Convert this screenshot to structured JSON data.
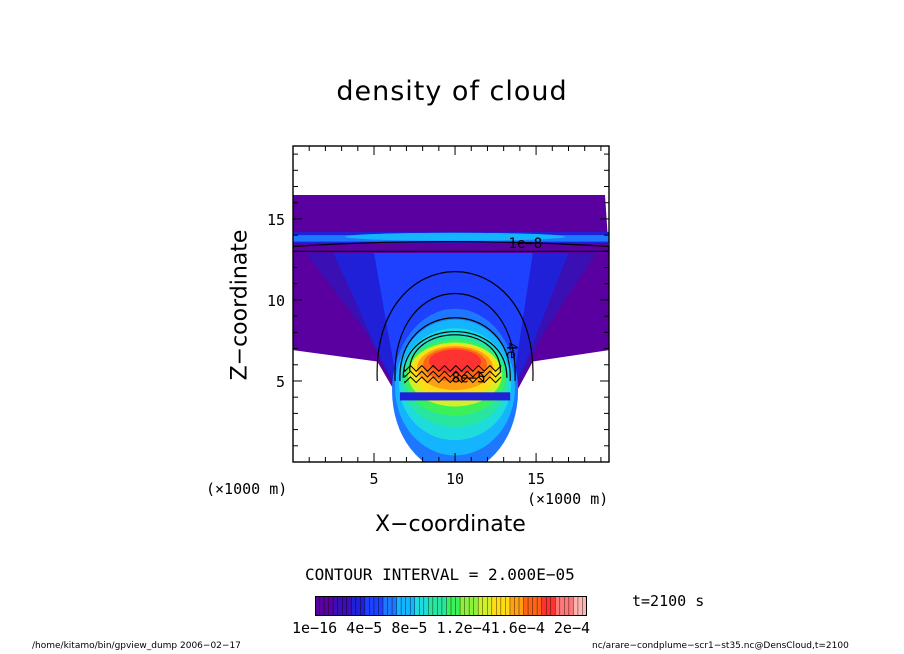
{
  "chart_data": {
    "type": "heatmap",
    "title": "density of cloud",
    "xlabel": "X−coordinate",
    "ylabel": "Z−coordinate",
    "x_unit": "(×1000 m)",
    "x_ticks": [
      5,
      10,
      15
    ],
    "y_ticks": [
      5,
      10,
      15
    ],
    "xlim": [
      0,
      19.5
    ],
    "ylim": [
      0,
      19.5
    ],
    "contour_interval": "CONTOUR INTERVAL = 2.000E−05",
    "time_label": "t=2100 s",
    "colorbar_ticks": "1e−16  4e−5  8e−5 1.2e−41.6e−4 2e−4",
    "contour_labels": [
      "1e−8",
      "4e",
      "8e−5"
    ],
    "fields": {
      "upper_layer": {
        "z_range": [
          12.8,
          16.6
        ],
        "value": "1e-8"
      },
      "cloud_core": {
        "x_center": 10,
        "z_peak": 7.0,
        "max_value": "2e-4"
      }
    },
    "colors": [
      "#5a00a0",
      "#3a0fb4",
      "#2020d8",
      "#1e40ff",
      "#1e78ff",
      "#14b4ff",
      "#1edcdc",
      "#28e6a0",
      "#3cf05a",
      "#8cf03c",
      "#d2f028",
      "#ffdc14",
      "#ffa014",
      "#ff6414",
      "#ff3232",
      "#ff7878",
      "#ffb4b4"
    ]
  },
  "footer": {
    "left": "/home/kitamo/bin/gpview_dump  2006−02−17",
    "right": "nc/arare−condplume−scr1−st35.nc@DensCloud,t=2100"
  }
}
